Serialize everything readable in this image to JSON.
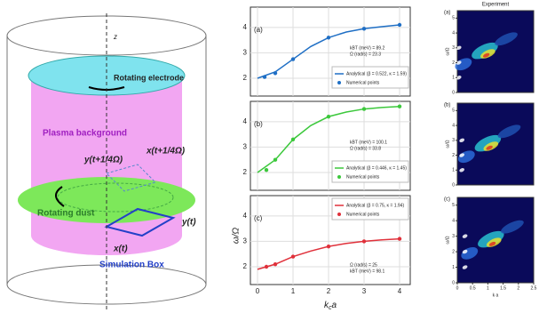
{
  "diagram": {
    "axis": "z",
    "electrode": "Rotating electrode",
    "plasma": "Plasma background",
    "y_rot": "y(t+1/4Ω)",
    "x_rot": "x(t+1/4Ω)",
    "dust": "Rotating dust",
    "y_now": "y(t)",
    "x_now": "x(t)",
    "box": "Simulation Box"
  },
  "chart_data": [
    {
      "type": "line",
      "panel": "(a)",
      "xlim": [
        -0.2,
        4.3
      ],
      "xticks": [
        0,
        1,
        2,
        3,
        4
      ],
      "ylim": [
        1.3,
        4.8
      ],
      "yticks": [
        2,
        3,
        4
      ],
      "legend": "lower right",
      "annotations": [
        "kBT (meV) = 89.2",
        "Ω (rad/s) = 23.3"
      ],
      "series": [
        {
          "name": "Analytical (β = 0.522, κ = 1.59)",
          "color": "#1f6fc5",
          "style": "line",
          "x": [
            0,
            0.5,
            1,
            1.5,
            2,
            2.5,
            3,
            3.5,
            4
          ],
          "values": [
            2.0,
            2.25,
            2.75,
            3.25,
            3.6,
            3.82,
            3.95,
            4.03,
            4.1
          ]
        },
        {
          "name": "Numerical points",
          "color": "#1f6fc5",
          "style": "points",
          "x": [
            0.2,
            0.5,
            1,
            2,
            3,
            4
          ],
          "values": [
            2.05,
            2.2,
            2.75,
            3.6,
            3.95,
            4.1
          ]
        }
      ]
    },
    {
      "type": "line",
      "panel": "(b)",
      "xlim": [
        -0.2,
        4.3
      ],
      "xticks": [
        0,
        1,
        2,
        3,
        4
      ],
      "ylim": [
        1.3,
        4.8
      ],
      "yticks": [
        2,
        3,
        4
      ],
      "legend": "lower right",
      "annotations": [
        "kBT (meV) = 100.1",
        "Ω (rad/s) = 33.8"
      ],
      "series": [
        {
          "name": "Analytical (β = 0.446, κ = 1.45)",
          "color": "#3cc83c",
          "style": "line",
          "x": [
            0,
            0.5,
            1,
            1.5,
            2,
            2.5,
            3,
            3.5,
            4
          ],
          "values": [
            2.0,
            2.5,
            3.3,
            3.85,
            4.2,
            4.38,
            4.5,
            4.56,
            4.6
          ]
        },
        {
          "name": "Numerical points",
          "color": "#3cc83c",
          "style": "points",
          "x": [
            0.25,
            0.5,
            1,
            2,
            3,
            4
          ],
          "values": [
            2.1,
            2.5,
            3.3,
            4.2,
            4.5,
            4.6
          ]
        }
      ]
    },
    {
      "type": "line",
      "panel": "(c)",
      "xlim": [
        -0.2,
        4.3
      ],
      "xticks": [
        0,
        1,
        2,
        3,
        4
      ],
      "ylim": [
        1.3,
        4.8
      ],
      "yticks": [
        2,
        3,
        4
      ],
      "legend": "upper right",
      "annotations": [
        "Ω (rad/s) = 25",
        "kBT (meV) = 98.1"
      ],
      "xlabel": "k",
      "xlabel_sub": "c",
      "xlabel_rest": "a",
      "ylabel": "ω/Ω",
      "series": [
        {
          "name": "Analytical (β = 0.75, κ = 1.94)",
          "color": "#e0303a",
          "style": "line",
          "x": [
            0,
            0.5,
            1,
            1.5,
            2,
            2.5,
            3,
            3.5,
            4
          ],
          "values": [
            1.9,
            2.1,
            2.4,
            2.62,
            2.8,
            2.92,
            3.0,
            3.06,
            3.1
          ]
        },
        {
          "name": "Numerical points",
          "color": "#e0303a",
          "style": "points",
          "x": [
            0.25,
            0.5,
            1,
            2,
            3,
            4
          ],
          "values": [
            2.0,
            2.1,
            2.4,
            2.8,
            3.0,
            3.1
          ]
        }
      ]
    }
  ],
  "heatmaps": {
    "title": "Experiment",
    "panels": [
      "(a)",
      "(b)",
      "(c)"
    ],
    "xlim": [
      0,
      2.5
    ],
    "xticks": [
      0,
      0.5,
      1,
      1.5,
      2,
      2.5
    ],
    "ylim": [
      0,
      5.5
    ],
    "yticks": [
      0,
      1,
      2,
      3,
      4,
      5
    ],
    "xlabel": "k a",
    "ylabel": "ω/Ω"
  }
}
